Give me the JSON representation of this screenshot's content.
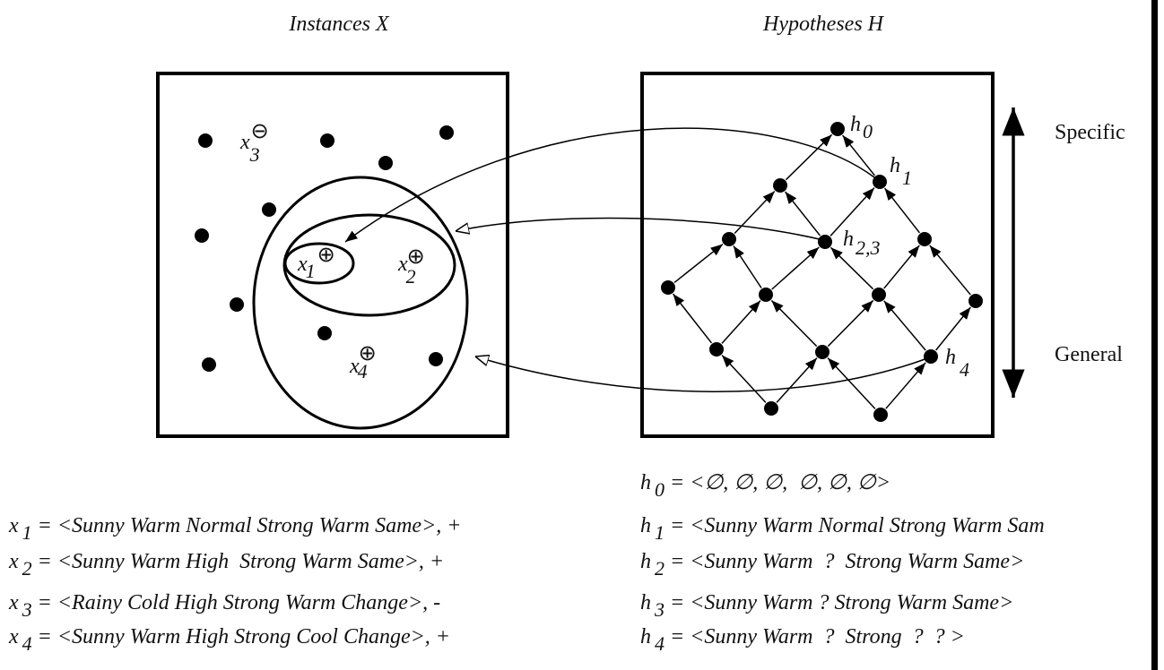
{
  "instances": {
    "title": "Instances X",
    "points": [
      {
        "var": "x",
        "sub": "1",
        "sign": "⊕"
      },
      {
        "var": "x",
        "sub": "2",
        "sign": "⊕"
      },
      {
        "var": "x",
        "sub": "3",
        "sign": "⊖"
      },
      {
        "var": "x",
        "sub": "4",
        "sign": "⊕"
      }
    ]
  },
  "hypotheses": {
    "title": "Hypotheses H",
    "nodes": [
      {
        "var": "h",
        "sub": "0"
      },
      {
        "var": "h",
        "sub": "1"
      },
      {
        "var": "h",
        "sub": "2,3"
      },
      {
        "var": "h",
        "sub": "4"
      }
    ],
    "axis": {
      "top": "Specific",
      "bottom": "General"
    }
  },
  "instance_defs": [
    {
      "var": "x",
      "sub": "1",
      "text": "= <Sunny Warm Normal Strong Warm Same>, +"
    },
    {
      "var": "x",
      "sub": "2",
      "text": "= <Sunny Warm High  Strong Warm Same>, +"
    },
    {
      "var": "x",
      "sub": "3",
      "text": "= <Rainy Cold High Strong Warm Change>, -"
    },
    {
      "var": "x",
      "sub": "4",
      "text": "= <Sunny Warm High Strong Cool Change>, +"
    }
  ],
  "hypothesis_defs": [
    {
      "var": "h",
      "sub": "0",
      "text": "= <∅, ∅, ∅,  ∅, ∅, ∅>"
    },
    {
      "var": "h",
      "sub": "1",
      "text": "= <Sunny Warm Normal Strong Warm Sam"
    },
    {
      "var": "h",
      "sub": "2",
      "text": "= <Sunny Warm  ?  Strong Warm Same>"
    },
    {
      "var": "h",
      "sub": "3",
      "text": "= <Sunny Warm ? Strong Warm Same>"
    },
    {
      "var": "h",
      "sub": "4",
      "text": "= <Sunny Warm  ?  Strong  ?  ? >"
    }
  ]
}
